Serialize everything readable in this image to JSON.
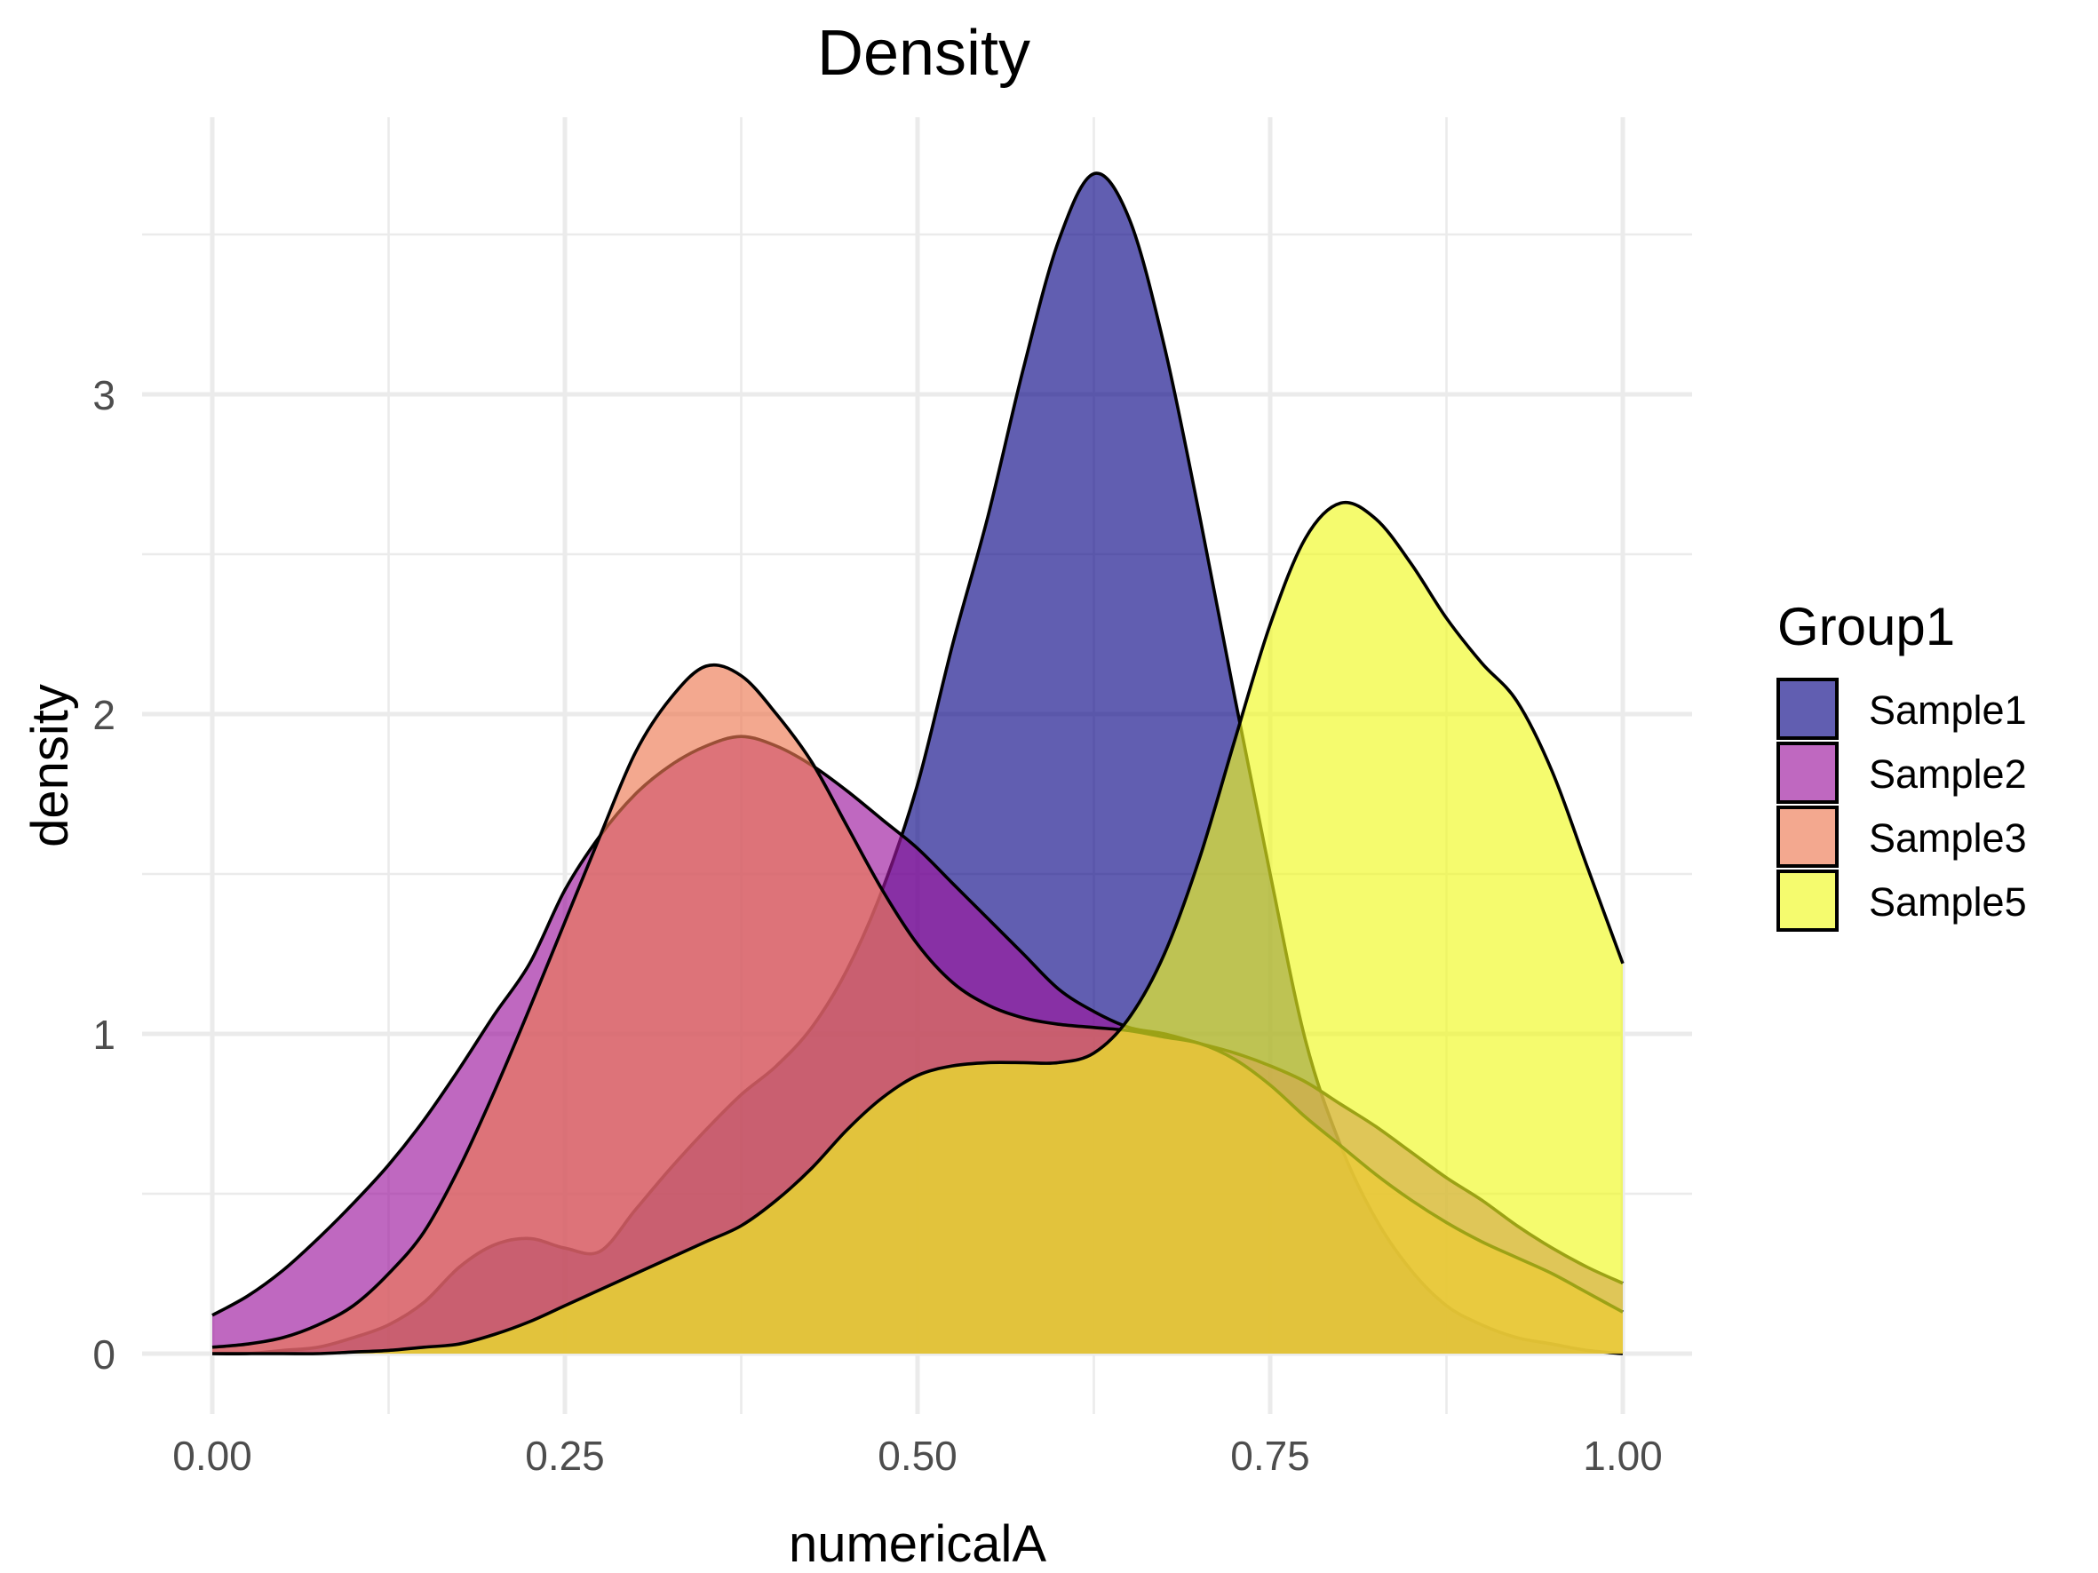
{
  "chart_data": {
    "type": "area",
    "subtype": "density",
    "title": "Density",
    "xlabel": "numericalA",
    "ylabel": "density",
    "xlim": [
      0,
      1
    ],
    "ylim": [
      0,
      3.75
    ],
    "x_ticks": [
      0,
      0.25,
      0.5,
      0.75,
      1
    ],
    "x_tick_labels": [
      "0.00",
      "0.25",
      "0.50",
      "0.75",
      "1.00"
    ],
    "y_ticks": [
      0,
      1,
      2,
      3
    ],
    "y_tick_labels": [
      "0",
      "1",
      "2",
      "3"
    ],
    "grid": true,
    "legend": {
      "title": "Group1",
      "position": "right",
      "entries": [
        "Sample1",
        "Sample2",
        "Sample3",
        "Sample5"
      ]
    },
    "x": [
      0,
      0.025,
      0.05,
      0.075,
      0.1,
      0.125,
      0.15,
      0.175,
      0.2,
      0.225,
      0.25,
      0.275,
      0.3,
      0.325,
      0.35,
      0.375,
      0.4,
      0.425,
      0.45,
      0.475,
      0.5,
      0.525,
      0.55,
      0.575,
      0.6,
      0.625,
      0.65,
      0.675,
      0.7,
      0.725,
      0.75,
      0.775,
      0.8,
      0.825,
      0.85,
      0.875,
      0.9,
      0.925,
      0.95,
      0.975,
      1
    ],
    "series": [
      {
        "name": "Sample1",
        "color": "#0D0887",
        "values": [
          0,
          0,
          0.01,
          0.02,
          0.05,
          0.09,
          0.16,
          0.27,
          0.34,
          0.36,
          0.33,
          0.32,
          0.45,
          0.58,
          0.7,
          0.81,
          0.9,
          1.02,
          1.2,
          1.45,
          1.78,
          2.22,
          2.62,
          3.08,
          3.48,
          3.69,
          3.55,
          3.15,
          2.62,
          2.05,
          1.5,
          0.98,
          0.65,
          0.42,
          0.26,
          0.15,
          0.09,
          0.05,
          0.03,
          0.01,
          0
        ]
      },
      {
        "name": "Sample2",
        "color": "#9C179E",
        "values": [
          0.12,
          0.18,
          0.26,
          0.36,
          0.47,
          0.59,
          0.73,
          0.89,
          1.06,
          1.22,
          1.45,
          1.62,
          1.75,
          1.84,
          1.9,
          1.93,
          1.9,
          1.84,
          1.76,
          1.67,
          1.58,
          1.47,
          1.36,
          1.25,
          1.14,
          1.07,
          1.02,
          1.0,
          0.97,
          0.94,
          0.9,
          0.85,
          0.78,
          0.71,
          0.63,
          0.55,
          0.48,
          0.4,
          0.33,
          0.27,
          0.22
        ]
      },
      {
        "name": "Sample3",
        "color": "#ED7953",
        "values": [
          0.02,
          0.03,
          0.05,
          0.09,
          0.15,
          0.25,
          0.38,
          0.58,
          0.82,
          1.08,
          1.35,
          1.62,
          1.88,
          2.05,
          2.15,
          2.12,
          2.0,
          1.85,
          1.65,
          1.45,
          1.28,
          1.16,
          1.09,
          1.05,
          1.03,
          1.02,
          1.01,
          0.99,
          0.97,
          0.92,
          0.84,
          0.74,
          0.65,
          0.56,
          0.48,
          0.41,
          0.35,
          0.3,
          0.25,
          0.19,
          0.13
        ]
      },
      {
        "name": "Sample5",
        "color": "#F0F921",
        "values": [
          0,
          0,
          0,
          0,
          0.005,
          0.01,
          0.02,
          0.03,
          0.06,
          0.1,
          0.15,
          0.2,
          0.25,
          0.3,
          0.35,
          0.4,
          0.48,
          0.58,
          0.7,
          0.8,
          0.87,
          0.9,
          0.91,
          0.91,
          0.91,
          0.94,
          1.05,
          1.25,
          1.55,
          1.92,
          2.28,
          2.55,
          2.66,
          2.61,
          2.47,
          2.3,
          2.16,
          2.04,
          1.82,
          1.52,
          1.22
        ]
      }
    ],
    "fill_alpha": 0.65,
    "outline_color": "#000000"
  }
}
